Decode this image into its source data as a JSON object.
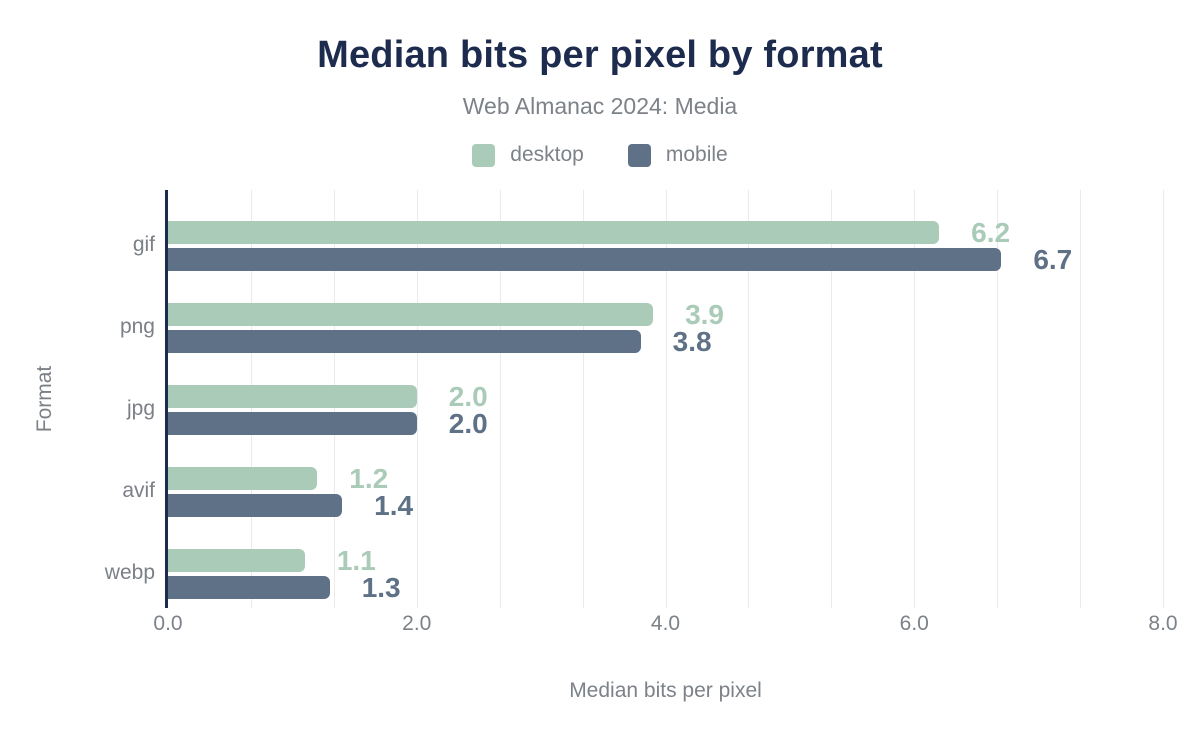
{
  "chart_data": {
    "type": "bar",
    "orientation": "horizontal",
    "title": "Median bits per pixel by format",
    "subtitle": "Web Almanac 2024: Media",
    "xlabel": "Median bits per pixel",
    "ylabel": "Format",
    "xlim": [
      0,
      8
    ],
    "x_tick_values": [
      0,
      2,
      4,
      6,
      8
    ],
    "x_tick_labels": [
      "0.0",
      "2.0",
      "4.0",
      "6.0",
      "8.0"
    ],
    "minor_grid_divisions": 12,
    "grid": true,
    "legend_position": "top",
    "categories": [
      "gif",
      "png",
      "jpg",
      "avif",
      "webp"
    ],
    "series": [
      {
        "name": "desktop",
        "color": "#a9cbb7",
        "values": [
          6.2,
          3.9,
          2.0,
          1.2,
          1.1
        ],
        "labels": [
          "6.2",
          "3.9",
          "2.0",
          "1.2",
          "1.1"
        ]
      },
      {
        "name": "mobile",
        "color": "#5e7186",
        "values": [
          6.7,
          3.8,
          2.0,
          1.4,
          1.3
        ],
        "labels": [
          "6.7",
          "3.8",
          "2.0",
          "1.4",
          "1.3"
        ]
      }
    ],
    "colors": {
      "title": "#1d2b4e",
      "axis_line": "#1d2b4e",
      "muted_text": "#7c8288",
      "gridline": "#ebebeb"
    }
  }
}
